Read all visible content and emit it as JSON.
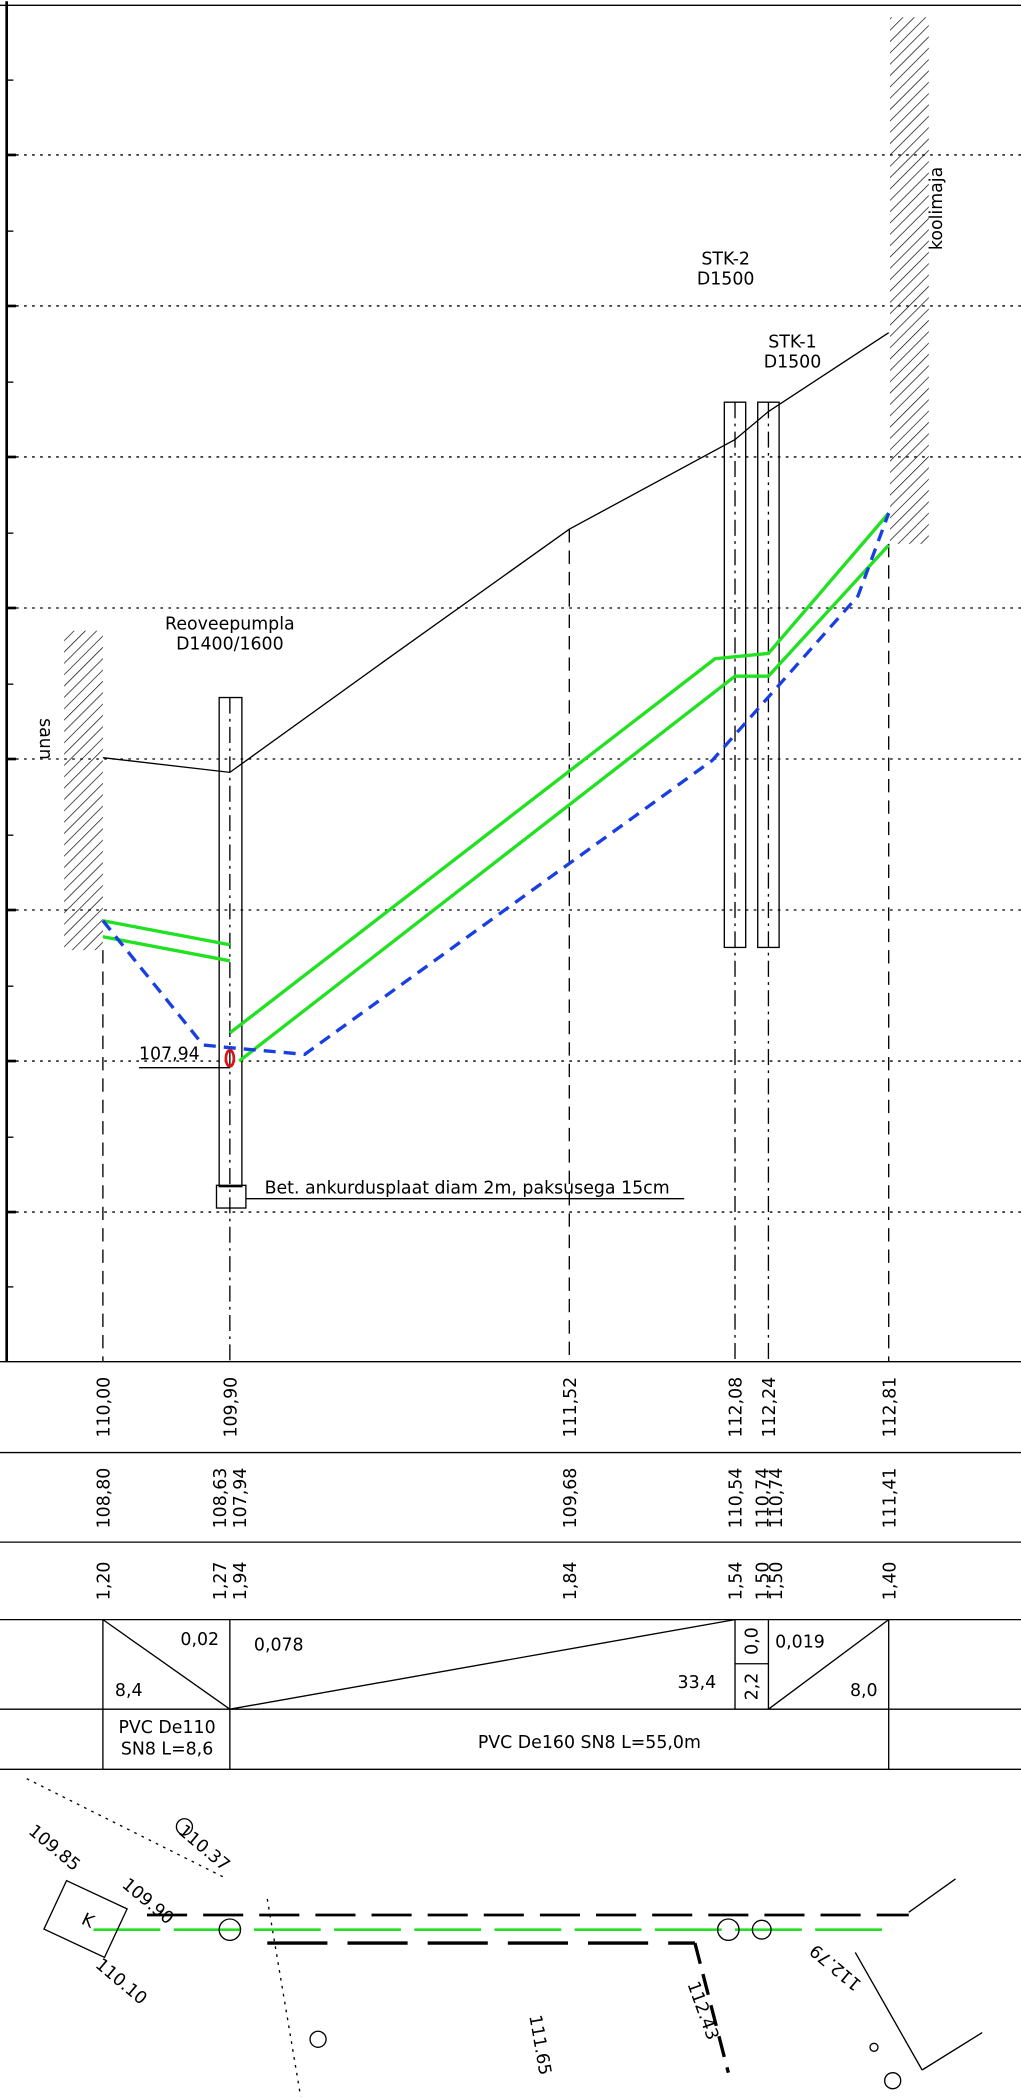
{
  "labels": {
    "saun": "saun",
    "koolimaja": "koolimaja",
    "pump": "Reoveepumpla",
    "pump_d": "D1400/1600",
    "stk2": "STK-2",
    "stk2_d": "D1500",
    "stk1": "STK-1",
    "stk1_d": "D1500",
    "level": "107,94",
    "plate": "Bet. ankurdusplaat diam 2m, paksusega 15cm"
  },
  "table": {
    "ground": [
      "110,00",
      "109,90",
      "111,52",
      "112,08",
      "112,24",
      "112,81"
    ],
    "pipe": [
      "108,80",
      "108,63",
      "107,94",
      "109,68",
      "110,54",
      "110,74",
      "110,74",
      "111,41"
    ],
    "depth": [
      "1,20",
      "1,27",
      "1,94",
      "1,84",
      "1,54",
      "1,50",
      "1,50",
      "1,40"
    ],
    "slope": [
      "0,02",
      "8,4",
      "0,078",
      "33,4",
      "0,0",
      "2,2",
      "0,019",
      "8,0"
    ],
    "spec": [
      "PVC De110",
      "SN8 L=8,6",
      "PVC De160 SN8 L=55,0m"
    ]
  },
  "plan": [
    "109.85",
    "109.90",
    "110.10",
    "K",
    "110.37",
    "111.65",
    "112.79",
    "112.43"
  ]
}
